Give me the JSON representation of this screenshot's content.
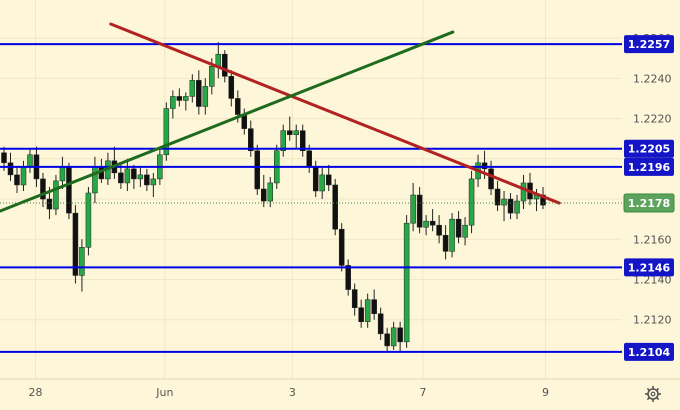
{
  "chart_data": {
    "type": "candlestick",
    "x_ticks": [
      "28",
      "Jun",
      "3",
      "7",
      "9"
    ],
    "y_ticks": [
      "1.2120",
      "1.2140",
      "1.2160",
      "1.2180",
      "1.2200",
      "1.2220",
      "1.2240",
      "1.2260"
    ],
    "ylim": [
      1.2098,
      1.2268
    ],
    "current_price": {
      "label": "1.2178",
      "value": 1.2178
    },
    "horizontal_levels": [
      {
        "label": "1.2257",
        "value": 1.2257
      },
      {
        "label": "1.2205",
        "value": 1.2205
      },
      {
        "label": "1.2196",
        "value": 1.2196
      },
      {
        "label": "1.2146",
        "value": 1.2146
      },
      {
        "label": "1.2104",
        "value": 1.2104
      }
    ],
    "trendlines": [
      {
        "color": "#b22222",
        "start": [
          0.178,
          1.2267
        ],
        "end": [
          0.899,
          1.2178
        ]
      },
      {
        "color": "#1e6b1e",
        "start": [
          0.0,
          1.2174
        ],
        "end": [
          0.728,
          1.2263
        ]
      }
    ],
    "candles": [
      [
        1.2203,
        1.2206,
        1.2194,
        1.2198
      ],
      [
        1.2198,
        1.2203,
        1.2189,
        1.2192
      ],
      [
        1.2192,
        1.2196,
        1.2183,
        1.2187
      ],
      [
        1.2187,
        1.2199,
        1.2184,
        1.2196
      ],
      [
        1.2196,
        1.2205,
        1.2193,
        1.2202
      ],
      [
        1.2202,
        1.2206,
        1.2186,
        1.219
      ],
      [
        1.219,
        1.2193,
        1.2176,
        1.218
      ],
      [
        1.218,
        1.2186,
        1.217,
        1.2175
      ],
      [
        1.2175,
        1.2192,
        1.2172,
        1.2189
      ],
      [
        1.2189,
        1.2201,
        1.2185,
        1.2196
      ],
      [
        1.2196,
        1.2198,
        1.217,
        1.2173
      ],
      [
        1.2173,
        1.2177,
        1.2138,
        1.2142
      ],
      [
        1.2142,
        1.216,
        1.2134,
        1.2156
      ],
      [
        1.2156,
        1.2186,
        1.2152,
        1.2183
      ],
      [
        1.2183,
        1.2201,
        1.2178,
        1.2196
      ],
      [
        1.2196,
        1.22,
        1.2188,
        1.219
      ],
      [
        1.219,
        1.2203,
        1.2187,
        1.2199
      ],
      [
        1.2199,
        1.2206,
        1.219,
        1.2193
      ],
      [
        1.2193,
        1.2198,
        1.2185,
        1.2188
      ],
      [
        1.2188,
        1.22,
        1.2184,
        1.2195
      ],
      [
        1.2195,
        1.2197,
        1.2185,
        1.219
      ],
      [
        1.219,
        1.2196,
        1.2186,
        1.2192
      ],
      [
        1.2192,
        1.2195,
        1.2184,
        1.2187
      ],
      [
        1.2187,
        1.2193,
        1.2181,
        1.219
      ],
      [
        1.219,
        1.2205,
        1.2187,
        1.2202
      ],
      [
        1.2202,
        1.2228,
        1.2199,
        1.2225
      ],
      [
        1.2225,
        1.2234,
        1.222,
        1.2231
      ],
      [
        1.2231,
        1.2235,
        1.2226,
        1.2229
      ],
      [
        1.2229,
        1.2233,
        1.2224,
        1.2231
      ],
      [
        1.2231,
        1.2242,
        1.2228,
        1.2239
      ],
      [
        1.2239,
        1.2244,
        1.2222,
        1.2226
      ],
      [
        1.2226,
        1.224,
        1.2222,
        1.2236
      ],
      [
        1.2236,
        1.225,
        1.2232,
        1.2246
      ],
      [
        1.2246,
        1.2258,
        1.224,
        1.2252
      ],
      [
        1.2252,
        1.2254,
        1.2238,
        1.2241
      ],
      [
        1.2241,
        1.2244,
        1.2226,
        1.223
      ],
      [
        1.223,
        1.2234,
        1.2218,
        1.2222
      ],
      [
        1.2222,
        1.2225,
        1.2212,
        1.2215
      ],
      [
        1.2215,
        1.2219,
        1.2201,
        1.2204
      ],
      [
        1.2204,
        1.2207,
        1.2182,
        1.2185
      ],
      [
        1.2185,
        1.2192,
        1.2176,
        1.2179
      ],
      [
        1.2179,
        1.2191,
        1.2176,
        1.2188
      ],
      [
        1.2188,
        1.2207,
        1.2185,
        1.2204
      ],
      [
        1.2204,
        1.2217,
        1.2201,
        1.2214
      ],
      [
        1.2214,
        1.2221,
        1.2209,
        1.2212
      ],
      [
        1.2212,
        1.2217,
        1.2205,
        1.2214
      ],
      [
        1.2214,
        1.2217,
        1.2201,
        1.2204
      ],
      [
        1.2204,
        1.2207,
        1.2193,
        1.2196
      ],
      [
        1.2196,
        1.2199,
        1.2181,
        1.2184
      ],
      [
        1.2184,
        1.2196,
        1.218,
        1.2192
      ],
      [
        1.2192,
        1.2197,
        1.2184,
        1.2187
      ],
      [
        1.2187,
        1.219,
        1.2162,
        1.2165
      ],
      [
        1.2165,
        1.2168,
        1.2144,
        1.2147
      ],
      [
        1.2147,
        1.215,
        1.2132,
        1.2135
      ],
      [
        1.2135,
        1.2138,
        1.2122,
        1.2126
      ],
      [
        1.2126,
        1.213,
        1.2116,
        1.2119
      ],
      [
        1.2119,
        1.2133,
        1.2116,
        1.213
      ],
      [
        1.213,
        1.2135,
        1.212,
        1.2123
      ],
      [
        1.2123,
        1.2126,
        1.211,
        1.2113
      ],
      [
        1.2113,
        1.2116,
        1.2104,
        1.2107
      ],
      [
        1.2107,
        1.2119,
        1.2105,
        1.2116
      ],
      [
        1.2116,
        1.2119,
        1.2104,
        1.2109
      ],
      [
        1.2109,
        1.2172,
        1.2106,
        1.2168
      ],
      [
        1.2168,
        1.2188,
        1.2164,
        1.2182
      ],
      [
        1.2182,
        1.2186,
        1.2163,
        1.2166
      ],
      [
        1.2166,
        1.2172,
        1.2162,
        1.2169
      ],
      [
        1.2169,
        1.2175,
        1.2164,
        1.2167
      ],
      [
        1.2167,
        1.2172,
        1.2158,
        1.2162
      ],
      [
        1.2162,
        1.2167,
        1.215,
        1.2154
      ],
      [
        1.2154,
        1.2173,
        1.2151,
        1.217
      ],
      [
        1.217,
        1.2174,
        1.2158,
        1.2161
      ],
      [
        1.2161,
        1.2171,
        1.2157,
        1.2167
      ],
      [
        1.2167,
        1.2194,
        1.2163,
        1.219
      ],
      [
        1.219,
        1.2202,
        1.2186,
        1.2198
      ],
      [
        1.2198,
        1.2204,
        1.219,
        1.2195
      ],
      [
        1.2195,
        1.2199,
        1.2182,
        1.2185
      ],
      [
        1.2185,
        1.2189,
        1.2174,
        1.2177
      ],
      [
        1.2177,
        1.2184,
        1.2169,
        1.218
      ],
      [
        1.218,
        1.2183,
        1.217,
        1.2173
      ],
      [
        1.2173,
        1.2182,
        1.217,
        1.2179
      ],
      [
        1.2179,
        1.2192,
        1.2175,
        1.2188
      ],
      [
        1.2188,
        1.2193,
        1.2177,
        1.218
      ],
      [
        1.218,
        1.2185,
        1.2174,
        1.2182
      ],
      [
        1.2182,
        1.2186,
        1.2175,
        1.2177
      ]
    ]
  }
}
